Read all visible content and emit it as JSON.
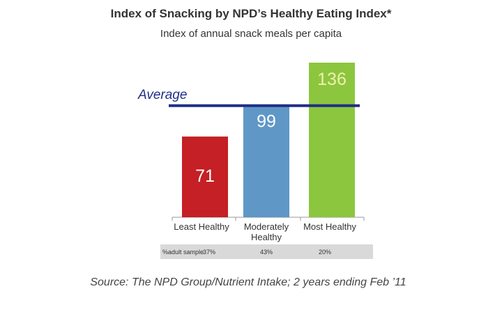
{
  "chart_data": {
    "type": "bar",
    "title": "Index of Snacking by NPD’s Healthy Eating Index*",
    "subtitle": "Index of annual snack meals per capita",
    "categories": [
      "Least Healthy",
      "Moderately Healthy",
      "Most Healthy"
    ],
    "values": [
      71,
      99,
      136
    ],
    "colors": [
      "#c42025",
      "#5f97c6",
      "#8cc63e"
    ],
    "label_colors": [
      "#ffffff",
      "#ffffff",
      "#f0f0b0"
    ],
    "reference_line": {
      "label": "Average",
      "value": 100,
      "color": "#1f2f86"
    },
    "ylim": [
      0,
      136
    ],
    "grid": false,
    "sample_row": {
      "label": "%adult sample",
      "values": [
        "37%",
        "43%",
        "20%"
      ]
    },
    "source": "Source: The NPD Group/Nutrient Intake; 2 years ending Feb ’11"
  }
}
